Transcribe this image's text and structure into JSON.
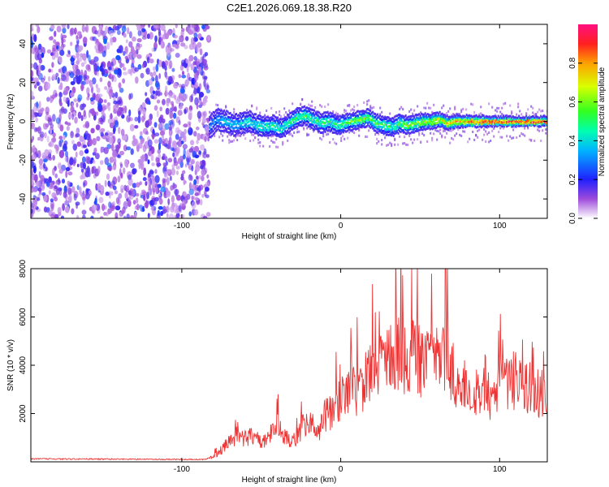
{
  "figure_title": "C2E1.2026.069.18.38.R20",
  "chart_data": [
    {
      "type": "heatmap",
      "title": "C2E1.2026.069.18.38.R20",
      "xlabel": "Height of straight line (km)",
      "ylabel": "Frequency (Hz)",
      "xlim": [
        -195,
        130
      ],
      "ylim": [
        -50,
        50
      ],
      "x_ticks": [
        -100,
        0,
        100
      ],
      "x_tick_labels": [
        "-100",
        "0",
        "100"
      ],
      "y_ticks": [
        -40,
        -20,
        0,
        20,
        40
      ],
      "y_tick_labels": [
        "-40",
        "-20",
        "0",
        "20",
        "40"
      ],
      "colorbar": {
        "label": "Normalized spectral amplitude",
        "range": [
          0,
          1
        ],
        "ticks": [
          0.0,
          0.2,
          0.4,
          0.6,
          0.8
        ],
        "tick_labels": [
          "0.0",
          "0.2",
          "0.4",
          "0.6",
          "0.8"
        ],
        "colormap": "rainbow"
      },
      "noise_region": {
        "x_start": -195,
        "x_end": -83,
        "typical_amplitude": 0.05
      },
      "ridge": {
        "x": [
          -83,
          -78,
          -73,
          -68,
          -63,
          -58,
          -53,
          -48,
          -43,
          -38,
          -33,
          -28,
          -23,
          -18,
          -13,
          -8,
          -3,
          2,
          7,
          12,
          17,
          22,
          27,
          32,
          37,
          42,
          47,
          52,
          57,
          62,
          67,
          72,
          77,
          82,
          87,
          92,
          97,
          102,
          107,
          112,
          117,
          122,
          127,
          130
        ],
        "frequency": [
          -3,
          1,
          0,
          -2,
          -1,
          0,
          -2,
          -3,
          -2,
          -4,
          -1,
          2,
          3,
          1,
          -1,
          0,
          -2,
          -1,
          0,
          1,
          2,
          -1,
          -2,
          -3,
          -1,
          -2,
          -1,
          0,
          0,
          1,
          -1,
          0,
          0,
          0,
          0,
          0,
          0,
          0,
          0,
          0,
          0,
          0,
          0,
          0
        ],
        "amplitude": [
          0.3,
          0.35,
          0.4,
          0.4,
          0.42,
          0.45,
          0.45,
          0.48,
          0.5,
          0.5,
          0.5,
          0.52,
          0.55,
          0.5,
          0.5,
          0.52,
          0.5,
          0.55,
          0.6,
          0.6,
          0.6,
          0.58,
          0.55,
          0.5,
          0.55,
          0.6,
          0.62,
          0.65,
          0.7,
          0.72,
          0.75,
          0.8,
          0.85,
          0.88,
          0.9,
          0.92,
          0.95,
          0.95,
          0.97,
          0.97,
          0.98,
          0.98,
          0.98,
          0.98
        ]
      }
    },
    {
      "type": "line",
      "xlabel": "Height of straight line (km)",
      "ylabel": "SNR (10 * v/v)",
      "xlim": [
        -195,
        130
      ],
      "ylim": [
        0,
        8000
      ],
      "x_ticks": [
        -100,
        0,
        100
      ],
      "x_tick_labels": [
        "-100",
        "0",
        "100"
      ],
      "y_ticks": [
        2000,
        4000,
        6000,
        8000
      ],
      "y_tick_labels": [
        "2000",
        "4000",
        "6000",
        "8000"
      ],
      "color": "#ee3333",
      "series": [
        {
          "name": "SNR envelope (approx.)",
          "x": [
            -195,
            -150,
            -100,
            -85,
            -80,
            -75,
            -70,
            -65,
            -60,
            -55,
            -50,
            -45,
            -40,
            -35,
            -30,
            -25,
            -20,
            -15,
            -10,
            -5,
            0,
            5,
            10,
            15,
            20,
            25,
            30,
            35,
            40,
            45,
            50,
            55,
            60,
            65,
            70,
            75,
            80,
            85,
            90,
            95,
            100,
            105,
            110,
            115,
            120,
            125,
            130
          ],
          "y": [
            150,
            140,
            120,
            120,
            300,
            700,
            1200,
            1500,
            1300,
            1600,
            1000,
            1500,
            2000,
            1500,
            1200,
            1800,
            2500,
            1500,
            2700,
            2800,
            3500,
            3800,
            4000,
            4500,
            5000,
            5500,
            6000,
            6200,
            6100,
            6300,
            5800,
            5600,
            6200,
            6500,
            5200,
            4500,
            4300,
            3200,
            4800,
            3200,
            4600,
            4300,
            4800,
            4100,
            4200,
            3800,
            4200
          ]
        }
      ]
    }
  ]
}
